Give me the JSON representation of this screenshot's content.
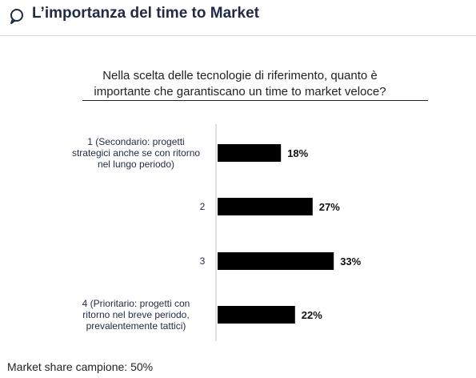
{
  "header": {
    "title": "L’importanza del time to Market",
    "icon": "speech-bubble-icon",
    "accent_color": "#1f2a44"
  },
  "question": {
    "line1": "Nella scelta delle tecnologie di riferimento, quanto è",
    "line2": "importante che garantiscano un time to market veloce?"
  },
  "chart_data": {
    "type": "bar",
    "orientation": "horizontal",
    "categories": [
      [
        "1     (Secondario: progetti",
        "strategici anche se con ritorno",
        "nel lungo periodo)"
      ],
      [
        "2"
      ],
      [
        "3"
      ],
      [
        "4     (Prioritario: progetti con",
        "ritorno nel breve periodo,",
        "prevalentemente tattici)"
      ]
    ],
    "values": [
      18,
      27,
      33,
      22
    ],
    "value_labels": [
      "18%",
      "27%",
      "33%",
      "22%"
    ],
    "unit": "%",
    "bar_color": "#000000",
    "grid": false,
    "xlim": [
      0,
      50
    ]
  },
  "footer": {
    "note": "Market share campione: 50%"
  }
}
